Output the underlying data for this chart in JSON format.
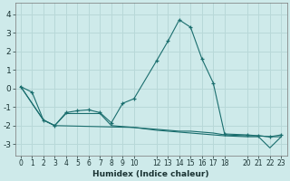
{
  "xlabel": "Humidex (Indice chaleur)",
  "background_color": "#ceeaea",
  "grid_color": "#b8d8d8",
  "line_color": "#1a6e6e",
  "xlim": [
    -0.5,
    23.5
  ],
  "ylim": [
    -3.6,
    4.6
  ],
  "yticks": [
    -3,
    -2,
    -1,
    0,
    1,
    2,
    3,
    4
  ],
  "xtick_vals": [
    0,
    1,
    2,
    3,
    4,
    5,
    6,
    7,
    8,
    9,
    10,
    12,
    13,
    14,
    15,
    16,
    17,
    18,
    20,
    21,
    22,
    23
  ],
  "xtick_labels": [
    "0",
    "1",
    "2",
    "3",
    "4",
    "5",
    "6",
    "7",
    "8",
    "9",
    "10",
    "12",
    "13",
    "14",
    "15",
    "16",
    "17",
    "18",
    "20",
    "21",
    "22",
    "23"
  ],
  "series": [
    {
      "x": [
        0,
        1,
        2,
        3,
        4,
        5,
        6,
        7,
        8,
        9,
        10,
        12,
        13,
        14,
        15,
        16,
        17,
        18,
        20,
        21,
        22,
        23
      ],
      "y": [
        0.1,
        -0.2,
        -1.7,
        -2.0,
        -1.3,
        -1.2,
        -1.15,
        -1.3,
        -1.85,
        -0.8,
        -0.55,
        1.5,
        2.55,
        3.7,
        3.3,
        1.6,
        0.3,
        -2.45,
        -2.5,
        -2.55,
        -2.6,
        -2.5
      ],
      "markers": true
    },
    {
      "x": [
        0,
        2,
        3,
        4,
        5,
        6,
        7,
        8,
        9,
        10,
        12,
        13,
        14,
        15,
        16,
        17,
        18,
        20,
        21,
        22,
        23
      ],
      "y": [
        0.1,
        -1.7,
        -2.0,
        -1.35,
        -1.35,
        -1.35,
        -1.35,
        -2.0,
        -2.05,
        -2.1,
        -2.2,
        -2.25,
        -2.3,
        -2.3,
        -2.35,
        -2.4,
        -2.5,
        -2.55,
        -2.55,
        -2.6,
        -2.6
      ],
      "markers": false
    },
    {
      "x": [
        0,
        2,
        3,
        10,
        12,
        13,
        14,
        15,
        16,
        17,
        18,
        20,
        21,
        22,
        23
      ],
      "y": [
        0.1,
        -1.7,
        -2.0,
        -2.1,
        -2.25,
        -2.3,
        -2.35,
        -2.4,
        -2.45,
        -2.5,
        -2.55,
        -2.6,
        -2.6,
        -3.2,
        -2.6
      ],
      "markers": false
    }
  ]
}
